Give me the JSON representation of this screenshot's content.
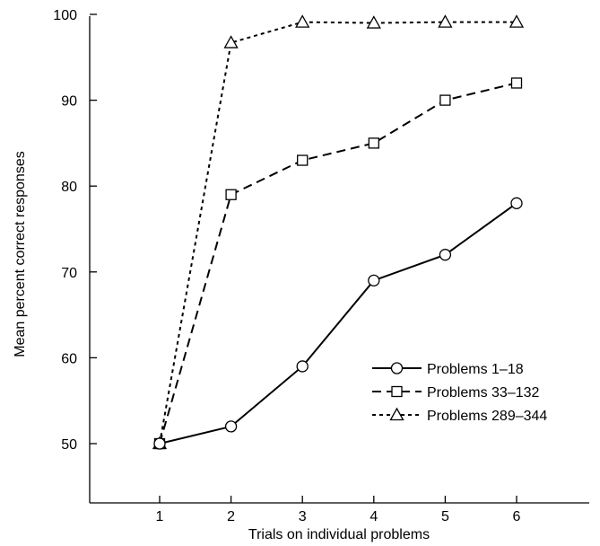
{
  "chart_data": {
    "type": "line",
    "title": "",
    "xlabel": "Trials on individual problems",
    "ylabel": "Mean percent correct responses",
    "x": [
      1,
      2,
      3,
      4,
      5,
      6
    ],
    "xlim": [
      0,
      7
    ],
    "ylim": [
      45,
      100
    ],
    "xticks": [
      "1",
      "2",
      "3",
      "4",
      "5",
      "6"
    ],
    "yticks": [
      "50",
      "60",
      "70",
      "80",
      "90",
      "100"
    ],
    "grid": false,
    "legend_position": "right",
    "series": [
      {
        "name": "Problems 1–18",
        "marker": "circle",
        "line_style": "solid",
        "values": [
          50,
          52,
          59,
          69,
          72,
          78
        ]
      },
      {
        "name": "Problems 33–132",
        "marker": "square",
        "line_style": "dashed",
        "values": [
          50,
          79,
          83,
          85,
          90,
          92
        ]
      },
      {
        "name": "Problems 289–344",
        "marker": "triangle",
        "line_style": "dotted",
        "values": [
          50,
          96.7,
          99.1,
          99,
          99.1,
          99.1
        ]
      }
    ]
  }
}
